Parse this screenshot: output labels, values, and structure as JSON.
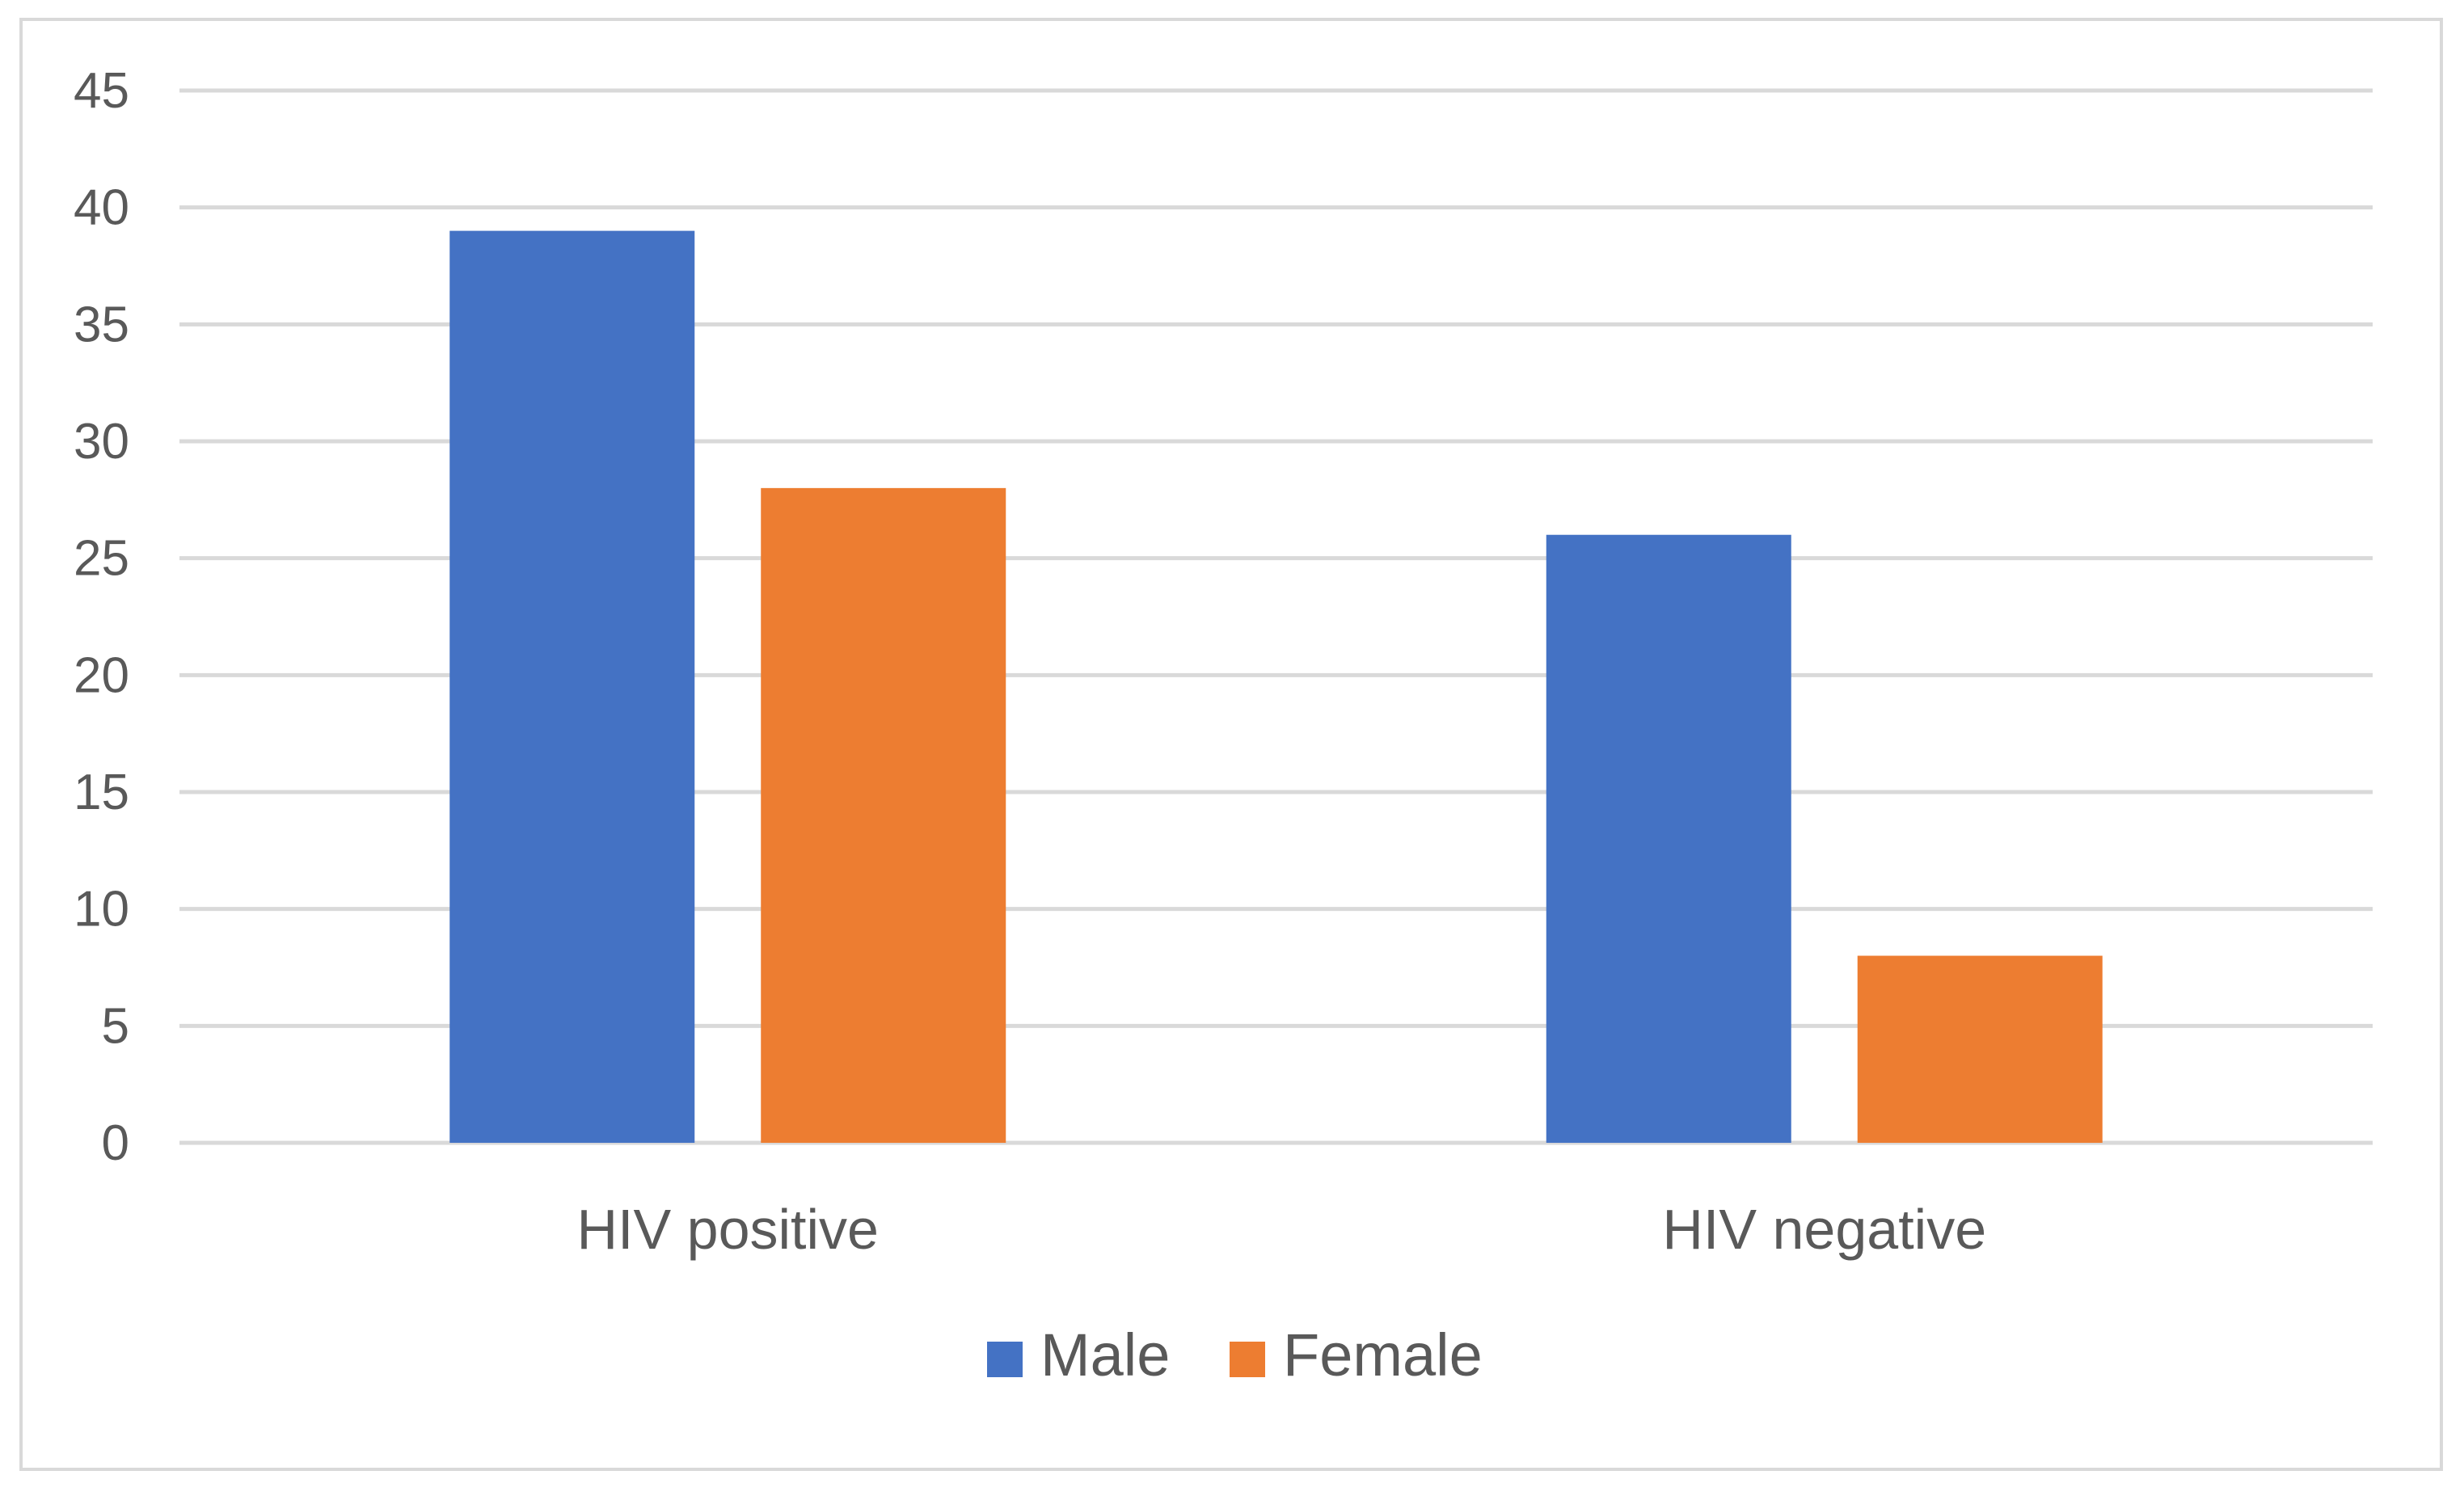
{
  "chart_data": {
    "type": "bar",
    "title": "",
    "xlabel": "",
    "ylabel": "",
    "categories": [
      "HIV positive",
      "HIV negative"
    ],
    "series": [
      {
        "name": "Male",
        "values": [
          39,
          26
        ],
        "color": "#4472c4"
      },
      {
        "name": "Female",
        "values": [
          28,
          8
        ],
        "color": "#ed7d31"
      }
    ],
    "ylim": [
      0,
      45
    ],
    "yticks": [
      0,
      5,
      10,
      15,
      20,
      25,
      30,
      35,
      40,
      45
    ],
    "grid": true,
    "legend_position": "bottom"
  }
}
